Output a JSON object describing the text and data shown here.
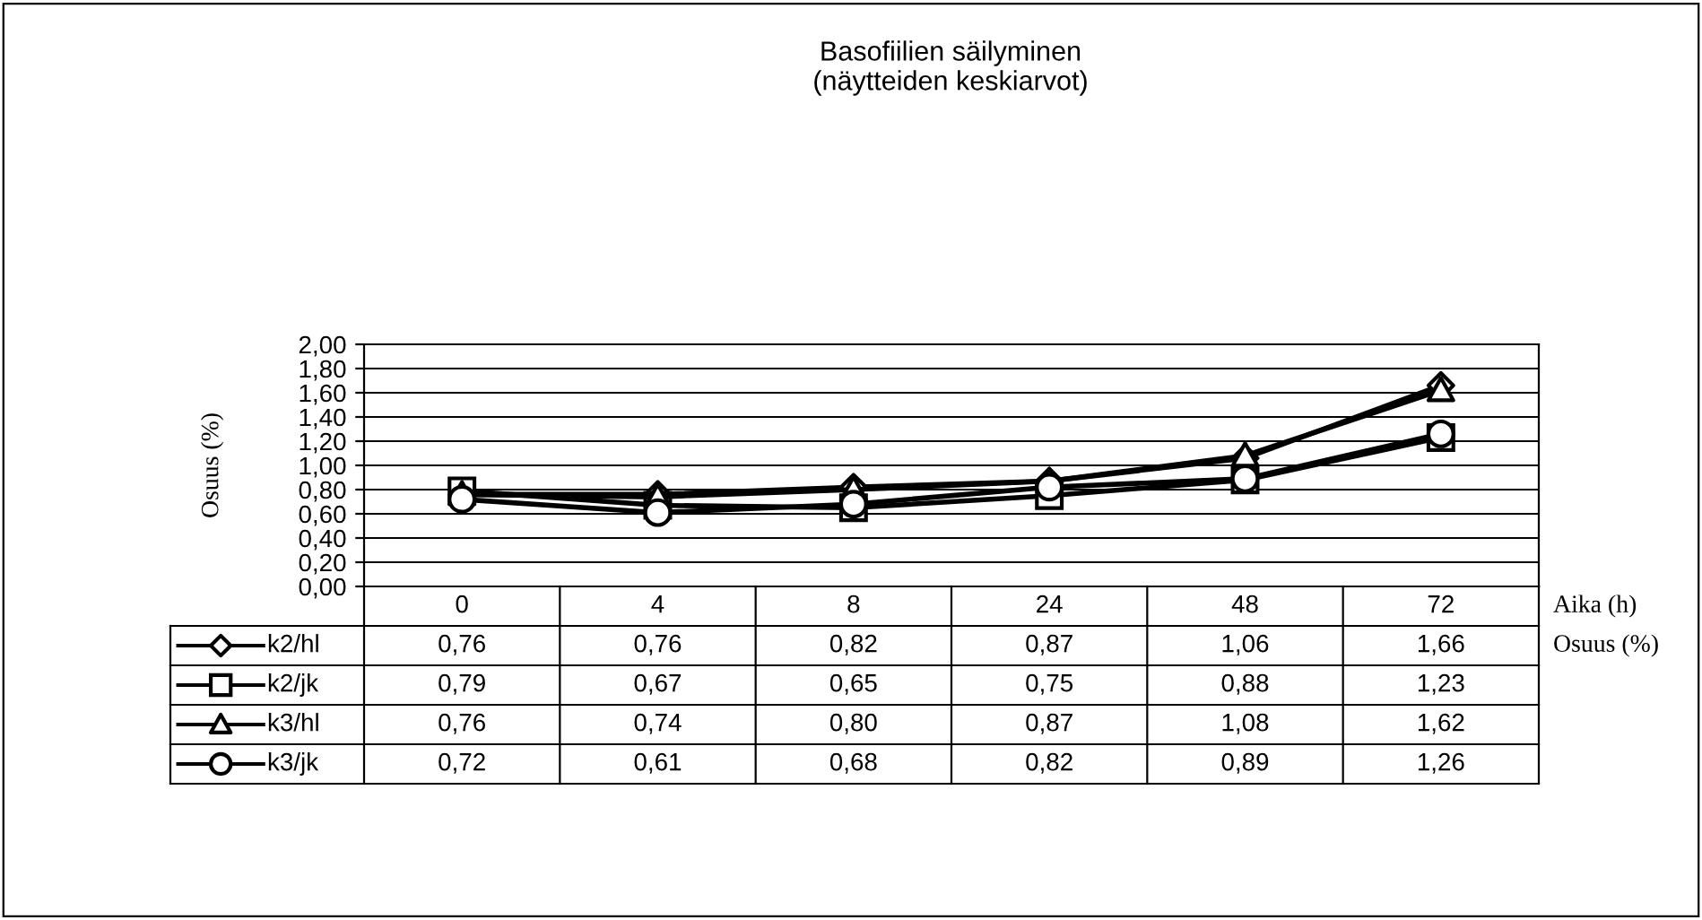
{
  "chart_data": {
    "type": "line",
    "title": "Basofiilien säilyminen\n(näytteiden keskiarvot)",
    "ylabel": "Osuus (%)",
    "annotations": [
      "Aika (h)",
      "Osuus (%)"
    ],
    "categories": [
      "0",
      "4",
      "8",
      "24",
      "48",
      "72"
    ],
    "series": [
      {
        "name": "k2/hl",
        "color": "#000000",
        "marker": "diamond",
        "values": [
          0.76,
          0.76,
          0.82,
          0.87,
          1.06,
          1.66
        ],
        "value_labels": [
          "0,76",
          "0,76",
          "0,82",
          "0,87",
          "1,06",
          "1,66"
        ]
      },
      {
        "name": "k2/jk",
        "color": "#000000",
        "marker": "square",
        "values": [
          0.79,
          0.67,
          0.65,
          0.75,
          0.88,
          1.23
        ],
        "value_labels": [
          "0,79",
          "0,67",
          "0,65",
          "0,75",
          "0,88",
          "1,23"
        ]
      },
      {
        "name": "k3/hl",
        "color": "#000000",
        "marker": "triangle",
        "values": [
          0.76,
          0.74,
          0.8,
          0.87,
          1.08,
          1.62
        ],
        "value_labels": [
          "0,76",
          "0,74",
          "0,80",
          "0,87",
          "1,08",
          "1,62"
        ]
      },
      {
        "name": "k3/jk",
        "color": "#000000",
        "marker": "circle",
        "values": [
          0.72,
          0.61,
          0.68,
          0.82,
          0.89,
          1.26
        ],
        "value_labels": [
          "0,72",
          "0,61",
          "0,68",
          "0,82",
          "0,89",
          "1,26"
        ]
      }
    ],
    "ylim": [
      0,
      2
    ],
    "yticks": [
      {
        "value": 0,
        "label": "0,00"
      },
      {
        "value": 0.2,
        "label": "0,20"
      },
      {
        "value": 0.4,
        "label": "0,40"
      },
      {
        "value": 0.6,
        "label": "0,60"
      },
      {
        "value": 0.8,
        "label": "0,80"
      },
      {
        "value": 1.0,
        "label": "1,00"
      },
      {
        "value": 1.2,
        "label": "1,20"
      },
      {
        "value": 1.4,
        "label": "1,40"
      },
      {
        "value": 1.6,
        "label": "1,60"
      },
      {
        "value": 1.8,
        "label": "1,80"
      },
      {
        "value": 2.0,
        "label": "2,00"
      }
    ],
    "grid": "y",
    "legend": "bottom left",
    "line_style": "solid"
  }
}
